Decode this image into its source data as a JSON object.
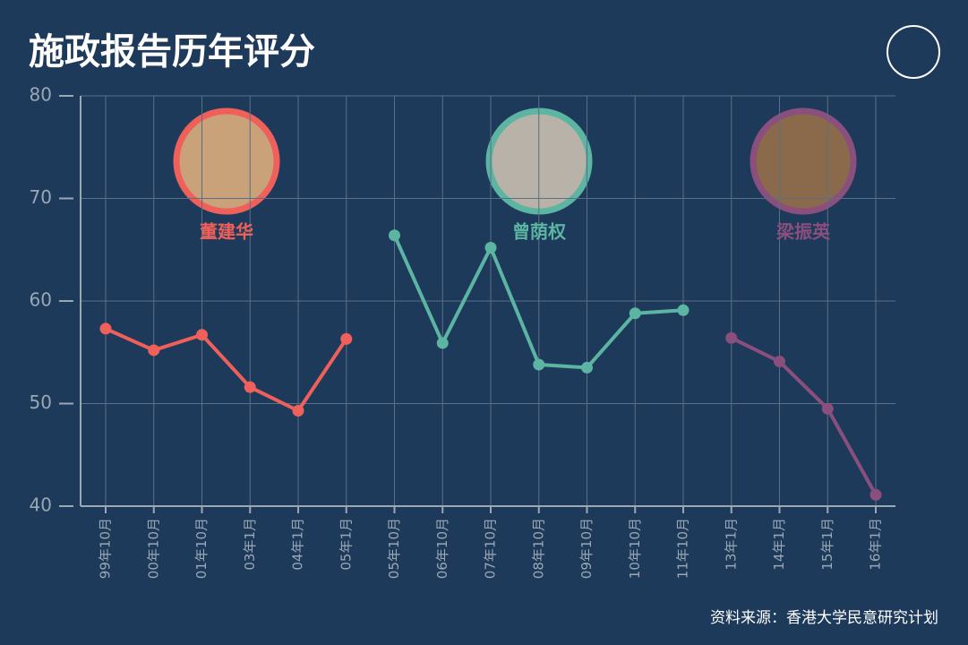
{
  "chart_data": {
    "type": "line",
    "title": "施政报告历年评分",
    "source": "资料来源：香港大学民意研究计划",
    "categories": [
      "99年10月",
      "00年10月",
      "01年10月",
      "03年1月",
      "04年1月",
      "05年1月",
      "05年10月",
      "06年10月",
      "07年10月",
      "08年10月",
      "09年10月",
      "10年10月",
      "11年10月",
      "13年1月",
      "14年1月",
      "15年1月",
      "16年1月"
    ],
    "series": [
      {
        "name": "董建华",
        "color": "#f0605a",
        "values": [
          57.3,
          55.2,
          56.7,
          51.6,
          49.3,
          56.3,
          null,
          null,
          null,
          null,
          null,
          null,
          null,
          null,
          null,
          null,
          null
        ]
      },
      {
        "name": "曾荫权",
        "color": "#5bb5a2",
        "values": [
          null,
          null,
          null,
          null,
          null,
          null,
          66.4,
          55.9,
          65.2,
          53.8,
          53.5,
          58.8,
          59.1,
          null,
          null,
          null,
          null
        ]
      },
      {
        "name": "梁振英",
        "color": "#8a4f7d",
        "values": [
          null,
          null,
          null,
          null,
          null,
          null,
          null,
          null,
          null,
          null,
          null,
          null,
          null,
          56.4,
          54.1,
          49.5,
          41.1
        ]
      }
    ],
    "ylim": [
      40,
      80
    ],
    "yticks": [
      40,
      50,
      60,
      70,
      80
    ],
    "grid": true
  }
}
